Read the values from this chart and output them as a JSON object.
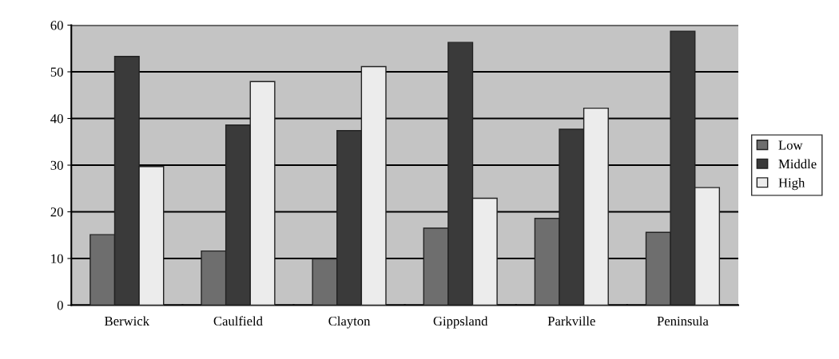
{
  "chart_data": {
    "type": "bar",
    "categories": [
      "Berwick",
      "Caulfield",
      "Clayton",
      "Gippsland",
      "Parkville",
      "Peninsula"
    ],
    "series": [
      {
        "name": "Low",
        "color": "#6e6e6e",
        "values": [
          15.1,
          11.6,
          9.9,
          16.5,
          18.6,
          15.6
        ]
      },
      {
        "name": "Middle",
        "color": "#3a3a3a",
        "values": [
          53.3,
          38.6,
          37.4,
          56.3,
          37.7,
          58.7
        ]
      },
      {
        "name": "High",
        "color": "#ececec",
        "values": [
          29.7,
          47.9,
          51.1,
          22.9,
          42.2,
          25.2
        ]
      }
    ],
    "ylim": [
      0,
      60
    ],
    "yticks": [
      0,
      10,
      20,
      30,
      40,
      50,
      60
    ],
    "grid": "y",
    "legend": "right"
  }
}
